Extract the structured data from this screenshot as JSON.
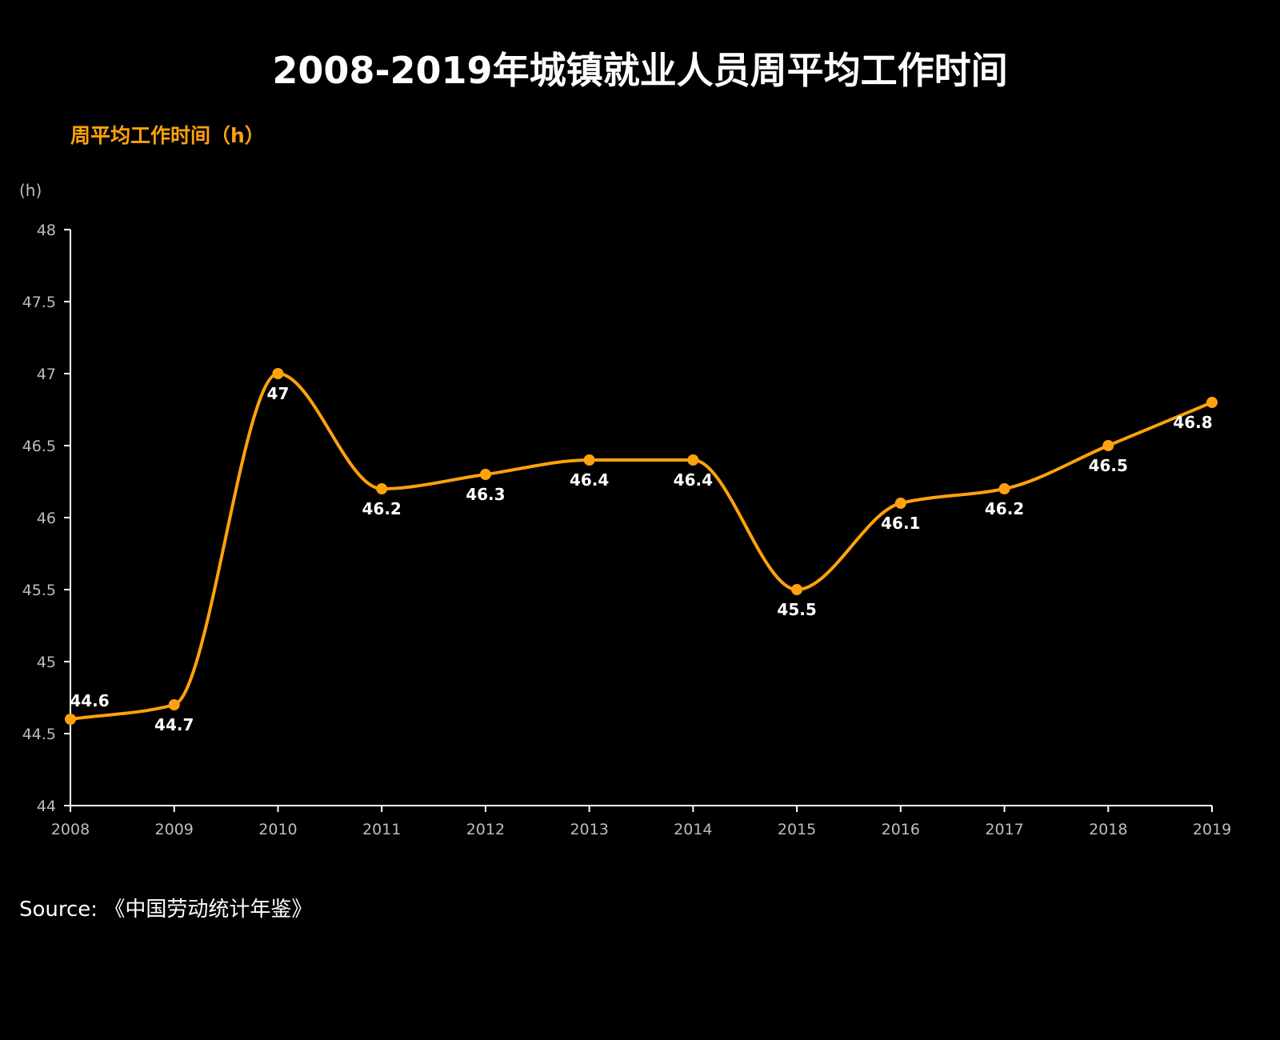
{
  "colors": {
    "background": "#000000",
    "series": "#FFA20D",
    "axis": "#FFFFFF",
    "tick_text": "#BDBDBD",
    "title": "#FFFFFF"
  },
  "source": "Source: 《中国劳动统计年鉴》",
  "chart_data": {
    "type": "line",
    "title": "2008-2019年城镇就业人员周平均工作时间",
    "xlabel": "",
    "ylabel": "(h)",
    "x": [
      "2008",
      "2009",
      "2010",
      "2011",
      "2012",
      "2013",
      "2014",
      "2015",
      "2016",
      "2017",
      "2018",
      "2019"
    ],
    "ylim": [
      44,
      48
    ],
    "yticks": [
      "44",
      "44.5",
      "45",
      "45.5",
      "46",
      "46.5",
      "47",
      "47.5",
      "48"
    ],
    "series": [
      {
        "name": "周平均工作时间（h）",
        "values": [
          44.6,
          44.7,
          47,
          46.2,
          46.3,
          46.4,
          46.4,
          45.5,
          46.1,
          46.2,
          46.5,
          46.8
        ],
        "data_labels": [
          "44.6",
          "44.7",
          "47",
          "46.2",
          "46.3",
          "46.4",
          "46.4",
          "45.5",
          "46.1",
          "46.2",
          "46.5",
          "46.8"
        ],
        "smooth": true,
        "markers": true
      }
    ],
    "legend": "top-left",
    "grid": false
  }
}
